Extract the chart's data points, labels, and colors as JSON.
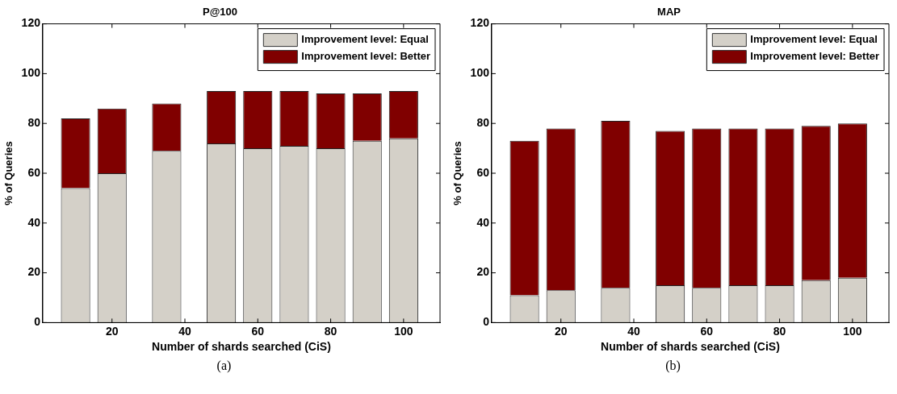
{
  "chart_data": [
    {
      "type": "bar",
      "title": "P@100",
      "xlabel": "Number of shards searched (CiS)",
      "ylabel": "% of Queries",
      "annotations": [
        "(a)"
      ],
      "x": [
        10,
        20,
        35,
        50,
        60,
        70,
        80,
        90,
        100
      ],
      "stacked": true,
      "xlim": [
        1,
        110
      ],
      "xticks": [
        20,
        40,
        60,
        80,
        100
      ],
      "ylim": [
        0,
        120
      ],
      "yticks": [
        0,
        20,
        40,
        60,
        80,
        100,
        120
      ],
      "legend": "top right",
      "series": [
        {
          "name": "Improvement level: Equal",
          "color": "#d4d0c8",
          "values": [
            54,
            60,
            69,
            72,
            70,
            71,
            70,
            73,
            74
          ]
        },
        {
          "name": "Improvement level: Better",
          "color": "#800000",
          "values": [
            28,
            26,
            19,
            21,
            23,
            22,
            22,
            19,
            19
          ]
        }
      ]
    },
    {
      "type": "bar",
      "title": "MAP",
      "xlabel": "Number of shards searched (CiS)",
      "ylabel": "% of Queries",
      "annotations": [
        "(b)"
      ],
      "x": [
        10,
        20,
        35,
        50,
        60,
        70,
        80,
        90,
        100
      ],
      "stacked": true,
      "xlim": [
        1,
        110
      ],
      "xticks": [
        20,
        40,
        60,
        80,
        100
      ],
      "ylim": [
        0,
        120
      ],
      "yticks": [
        0,
        20,
        40,
        60,
        80,
        100,
        120
      ],
      "legend": "top right",
      "series": [
        {
          "name": "Improvement level: Equal",
          "color": "#d4d0c8",
          "values": [
            11,
            13,
            14,
            15,
            14,
            15,
            15,
            17,
            18
          ]
        },
        {
          "name": "Improvement level: Better",
          "color": "#800000",
          "values": [
            62,
            65,
            67,
            62,
            64,
            63,
            63,
            62,
            62
          ]
        }
      ]
    }
  ]
}
